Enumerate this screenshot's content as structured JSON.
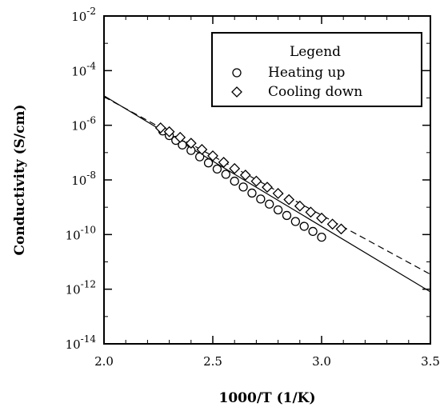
{
  "chart_data": {
    "type": "scatter",
    "xlabel": "1000/T (1/K)",
    "ylabel": "Conductivity (S/cm)",
    "xlim": [
      2.0,
      3.5
    ],
    "ylim_log10": [
      -14,
      -2
    ],
    "y_scale": "log",
    "grid": false,
    "x_ticks": [
      {
        "value": 2.0,
        "label": "2.0"
      },
      {
        "value": 2.5,
        "label": "2.5"
      },
      {
        "value": 3.0,
        "label": "3.0"
      },
      {
        "value": 3.5,
        "label": "3.5"
      }
    ],
    "y_ticks": [
      {
        "value": -2,
        "base": "10",
        "exp": "-2"
      },
      {
        "value": -4,
        "base": "10",
        "exp": "-4"
      },
      {
        "value": -6,
        "base": "10",
        "exp": "-6"
      },
      {
        "value": -8,
        "base": "10",
        "exp": "-8"
      },
      {
        "value": -10,
        "base": "10",
        "exp": "-10"
      },
      {
        "value": -12,
        "base": "10",
        "exp": "-12"
      },
      {
        "value": -14,
        "base": "10",
        "exp": "-14"
      }
    ],
    "legend": {
      "title": "Legend",
      "placement": "top-right",
      "entries": [
        {
          "label": "Heating up",
          "marker": "circle"
        },
        {
          "label": "Cooling down",
          "marker": "diamond"
        }
      ]
    },
    "series": [
      {
        "name": "Heating up",
        "marker": "circle",
        "points": [
          {
            "x": 2.27,
            "y": 6.2e-07
          },
          {
            "x": 2.3,
            "y": 4.2e-07
          },
          {
            "x": 2.33,
            "y": 2.8e-07
          },
          {
            "x": 2.36,
            "y": 1.9e-07
          },
          {
            "x": 2.4,
            "y": 1.2e-07
          },
          {
            "x": 2.44,
            "y": 7e-08
          },
          {
            "x": 2.48,
            "y": 4.2e-08
          },
          {
            "x": 2.52,
            "y": 2.5e-08
          },
          {
            "x": 2.56,
            "y": 1.6e-08
          },
          {
            "x": 2.6,
            "y": 9e-09
          },
          {
            "x": 2.64,
            "y": 5.5e-09
          },
          {
            "x": 2.68,
            "y": 3.3e-09
          },
          {
            "x": 2.72,
            "y": 2e-09
          },
          {
            "x": 2.76,
            "y": 1.3e-09
          },
          {
            "x": 2.8,
            "y": 8e-10
          },
          {
            "x": 2.84,
            "y": 5e-10
          },
          {
            "x": 2.88,
            "y": 3e-10
          },
          {
            "x": 2.92,
            "y": 2e-10
          },
          {
            "x": 2.96,
            "y": 1.3e-10
          },
          {
            "x": 3.0,
            "y": 8e-11
          }
        ]
      },
      {
        "name": "Cooling down",
        "marker": "diamond",
        "points": [
          {
            "x": 2.26,
            "y": 8e-07
          },
          {
            "x": 2.3,
            "y": 5.8e-07
          },
          {
            "x": 2.35,
            "y": 3.6e-07
          },
          {
            "x": 2.4,
            "y": 2.2e-07
          },
          {
            "x": 2.45,
            "y": 1.3e-07
          },
          {
            "x": 2.5,
            "y": 7.6e-08
          },
          {
            "x": 2.55,
            "y": 4.4e-08
          },
          {
            "x": 2.6,
            "y": 2.6e-08
          },
          {
            "x": 2.65,
            "y": 1.5e-08
          },
          {
            "x": 2.7,
            "y": 9e-09
          },
          {
            "x": 2.75,
            "y": 5.4e-09
          },
          {
            "x": 2.8,
            "y": 3.2e-09
          },
          {
            "x": 2.85,
            "y": 1.9e-09
          },
          {
            "x": 2.9,
            "y": 1.1e-09
          },
          {
            "x": 2.95,
            "y": 6.6e-10
          },
          {
            "x": 3.0,
            "y": 4e-10
          },
          {
            "x": 3.05,
            "y": 2.4e-10
          },
          {
            "x": 3.09,
            "y": 1.6e-10
          }
        ]
      }
    ],
    "fit_lines": [
      {
        "style": "solid",
        "points": [
          {
            "x": 2.0,
            "y": 1.2e-05
          },
          {
            "x": 3.5,
            "y": 8e-13
          }
        ]
      },
      {
        "style": "dashed",
        "points": [
          {
            "x": 2.0,
            "y": 1.1e-05
          },
          {
            "x": 3.5,
            "y": 3.5e-12
          }
        ]
      }
    ]
  }
}
